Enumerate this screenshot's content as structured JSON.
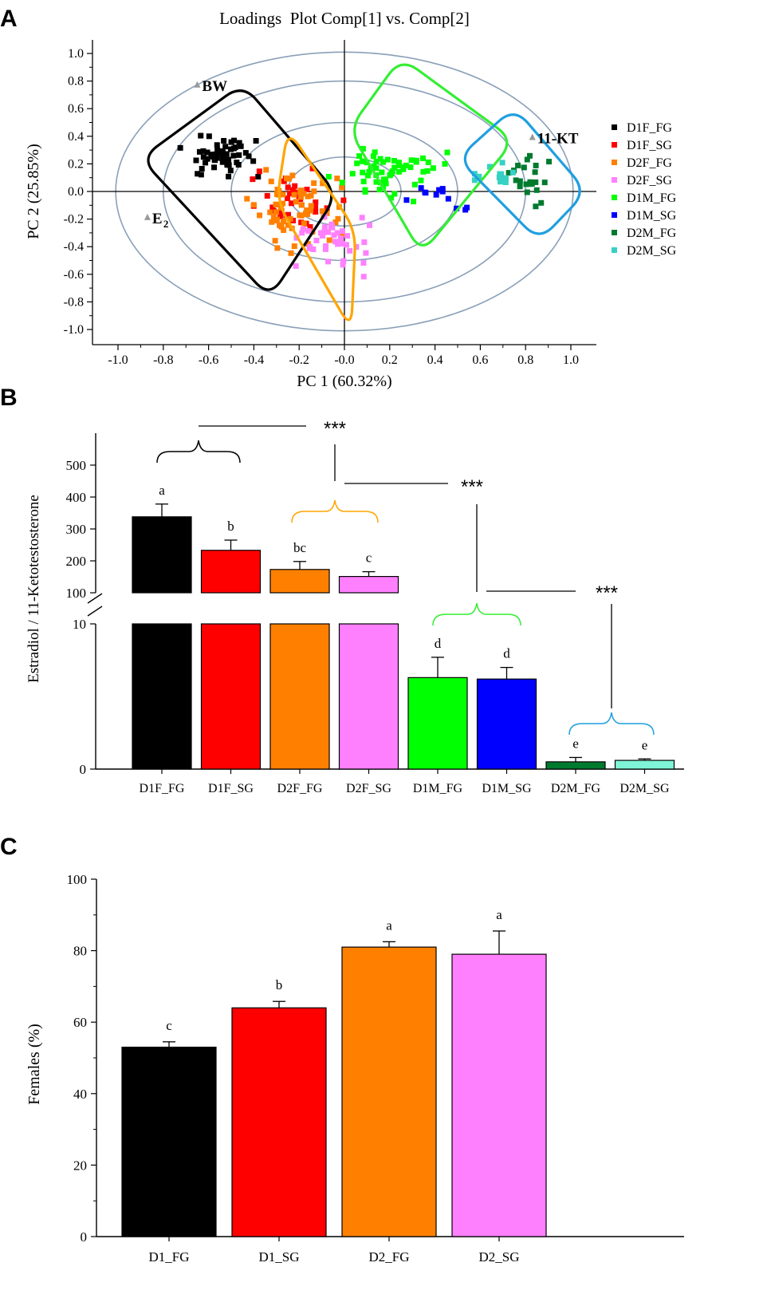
{
  "colors": {
    "D1F_FG": "#000000",
    "D1F_SG": "#ff0000",
    "D2F_FG": "#ff8000",
    "D2F_SG": "#ff80ff",
    "D1M_FG": "#00ff00",
    "D1M_SG": "#0000ff",
    "D2M_FG": "#007a2e",
    "D2M_SG": "#36d1c4",
    "bar_D2M_SG": "#7ff5d8",
    "ellipse": "#8aa0b8",
    "box_black": "#000000",
    "box_orange": "#ffa500",
    "box_green": "#33ee33",
    "box_blue": "#1f9fe0"
  },
  "chart_data": [
    {
      "panel": "A",
      "type": "scatter",
      "title": "Loadings  Plot Comp[1] vs. Comp[2]",
      "xlabel": "PC 1 (60.32%)",
      "ylabel": "PC 2 (25.85%)",
      "xlim": [
        -1.0,
        1.0
      ],
      "ylim": [
        -1.0,
        1.0
      ],
      "xticks": [
        "-1.0",
        "-0.8",
        "-0.6",
        "-0.4",
        "-0.2",
        "-0.0",
        "0.2",
        "0.4",
        "0.6",
        "0.8",
        "1.0"
      ],
      "yticks": [
        "1.0",
        "0.8",
        "0.6",
        "0.4",
        "0.2",
        "0.0",
        "-0.2",
        "-0.4",
        "-0.6",
        "-0.8",
        "-1.0"
      ],
      "variables": [
        {
          "name": "BW",
          "x": -0.65,
          "y": 0.77
        },
        {
          "name": "11-KT",
          "x": 0.83,
          "y": 0.39
        },
        {
          "name": "E",
          "sub": "2",
          "x": -0.87,
          "y": -0.19
        }
      ],
      "legend": [
        "D1F_FG",
        "D1F_SG",
        "D2F_FG",
        "D2F_SG",
        "D1M_FG",
        "D1M_SG",
        "D2M_FG",
        "D2M_SG"
      ],
      "groups": [
        {
          "name": "D1F_FG",
          "center": [
            -0.55,
            0.25
          ],
          "spread": [
            0.16,
            0.12
          ],
          "n": 55
        },
        {
          "name": "D1F_SG",
          "center": [
            -0.22,
            -0.05
          ],
          "spread": [
            0.14,
            0.18
          ],
          "n": 35
        },
        {
          "name": "D2F_FG",
          "center": [
            -0.22,
            -0.12
          ],
          "spread": [
            0.16,
            0.2
          ],
          "n": 70
        },
        {
          "name": "D2F_SG",
          "center": [
            -0.05,
            -0.35
          ],
          "spread": [
            0.16,
            0.18
          ],
          "n": 40
        },
        {
          "name": "D1M_FG",
          "center": [
            0.2,
            0.15
          ],
          "spread": [
            0.18,
            0.16
          ],
          "n": 60
        },
        {
          "name": "D1M_SG",
          "center": [
            0.42,
            -0.05
          ],
          "spread": [
            0.12,
            0.09
          ],
          "n": 12
        },
        {
          "name": "D2M_FG",
          "center": [
            0.82,
            0.1
          ],
          "spread": [
            0.08,
            0.17
          ],
          "n": 22
        },
        {
          "name": "D2M_SG",
          "center": [
            0.66,
            0.12
          ],
          "spread": [
            0.08,
            0.08
          ],
          "n": 14
        }
      ],
      "ellipses_semi_axes": [
        [
          1.01,
          1.01
        ],
        [
          0.8,
          0.8
        ],
        [
          0.5,
          0.5
        ],
        [
          0.25,
          0.25
        ]
      ],
      "boxes": [
        {
          "color": "box_black",
          "corners": [
            [
              -0.45,
              0.78
            ],
            [
              -0.03,
              -0.02
            ],
            [
              -0.33,
              -0.77
            ],
            [
              -0.9,
              0.24
            ]
          ]
        },
        {
          "color": "box_orange",
          "corners": [
            [
              -0.25,
              0.45
            ],
            [
              0.05,
              -0.28
            ],
            [
              0.03,
              -1.0
            ],
            [
              -0.3,
              -0.07
            ]
          ]
        },
        {
          "color": "box_green",
          "corners": [
            [
              0.02,
              0.45
            ],
            [
              0.25,
              0.97
            ],
            [
              0.75,
              0.37
            ],
            [
              0.34,
              -0.45
            ]
          ]
        },
        {
          "color": "box_blue",
          "corners": [
            [
              0.5,
              0.24
            ],
            [
              0.75,
              0.61
            ],
            [
              1.07,
              0.0
            ],
            [
              0.86,
              -0.36
            ]
          ]
        }
      ]
    },
    {
      "panel": "B",
      "type": "bar",
      "ylabel": "Estradiol / 11-Ketotestosterone",
      "broken_axis": {
        "upper": [
          100,
          500
        ],
        "lower": [
          0,
          10
        ]
      },
      "yticks_upper": [
        "500",
        "400",
        "300",
        "200",
        "100"
      ],
      "yticks_lower": [
        "10",
        "0"
      ],
      "categories": [
        "D1F_FG",
        "D1F_SG",
        "D2F_FG",
        "D2F_SG",
        "D1M_FG",
        "D1M_SG",
        "D2M_FG",
        "D2M_SG"
      ],
      "values": [
        338,
        233,
        173,
        151,
        6.3,
        6.2,
        0.5,
        0.6
      ],
      "errors": [
        40,
        32,
        25,
        15,
        1.4,
        0.8,
        0.3,
        0.1
      ],
      "letters": [
        "a",
        "b",
        "bc",
        "c",
        "d",
        "d",
        "e",
        "e"
      ],
      "significance": "***"
    },
    {
      "panel": "C",
      "type": "bar",
      "ylabel": "Females (%)",
      "ylim": [
        0,
        100
      ],
      "yticks": [
        "100",
        "80",
        "60",
        "40",
        "20",
        "0"
      ],
      "categories": [
        "D1_FG",
        "D1_SG",
        "D2_FG",
        "D2_SG"
      ],
      "values": [
        53,
        64,
        81,
        79
      ],
      "errors": [
        1.5,
        1.8,
        1.5,
        6.5
      ],
      "letters": [
        "c",
        "b",
        "a",
        "a"
      ]
    }
  ],
  "panels": {
    "a": "A",
    "b": "B",
    "c": "C"
  }
}
